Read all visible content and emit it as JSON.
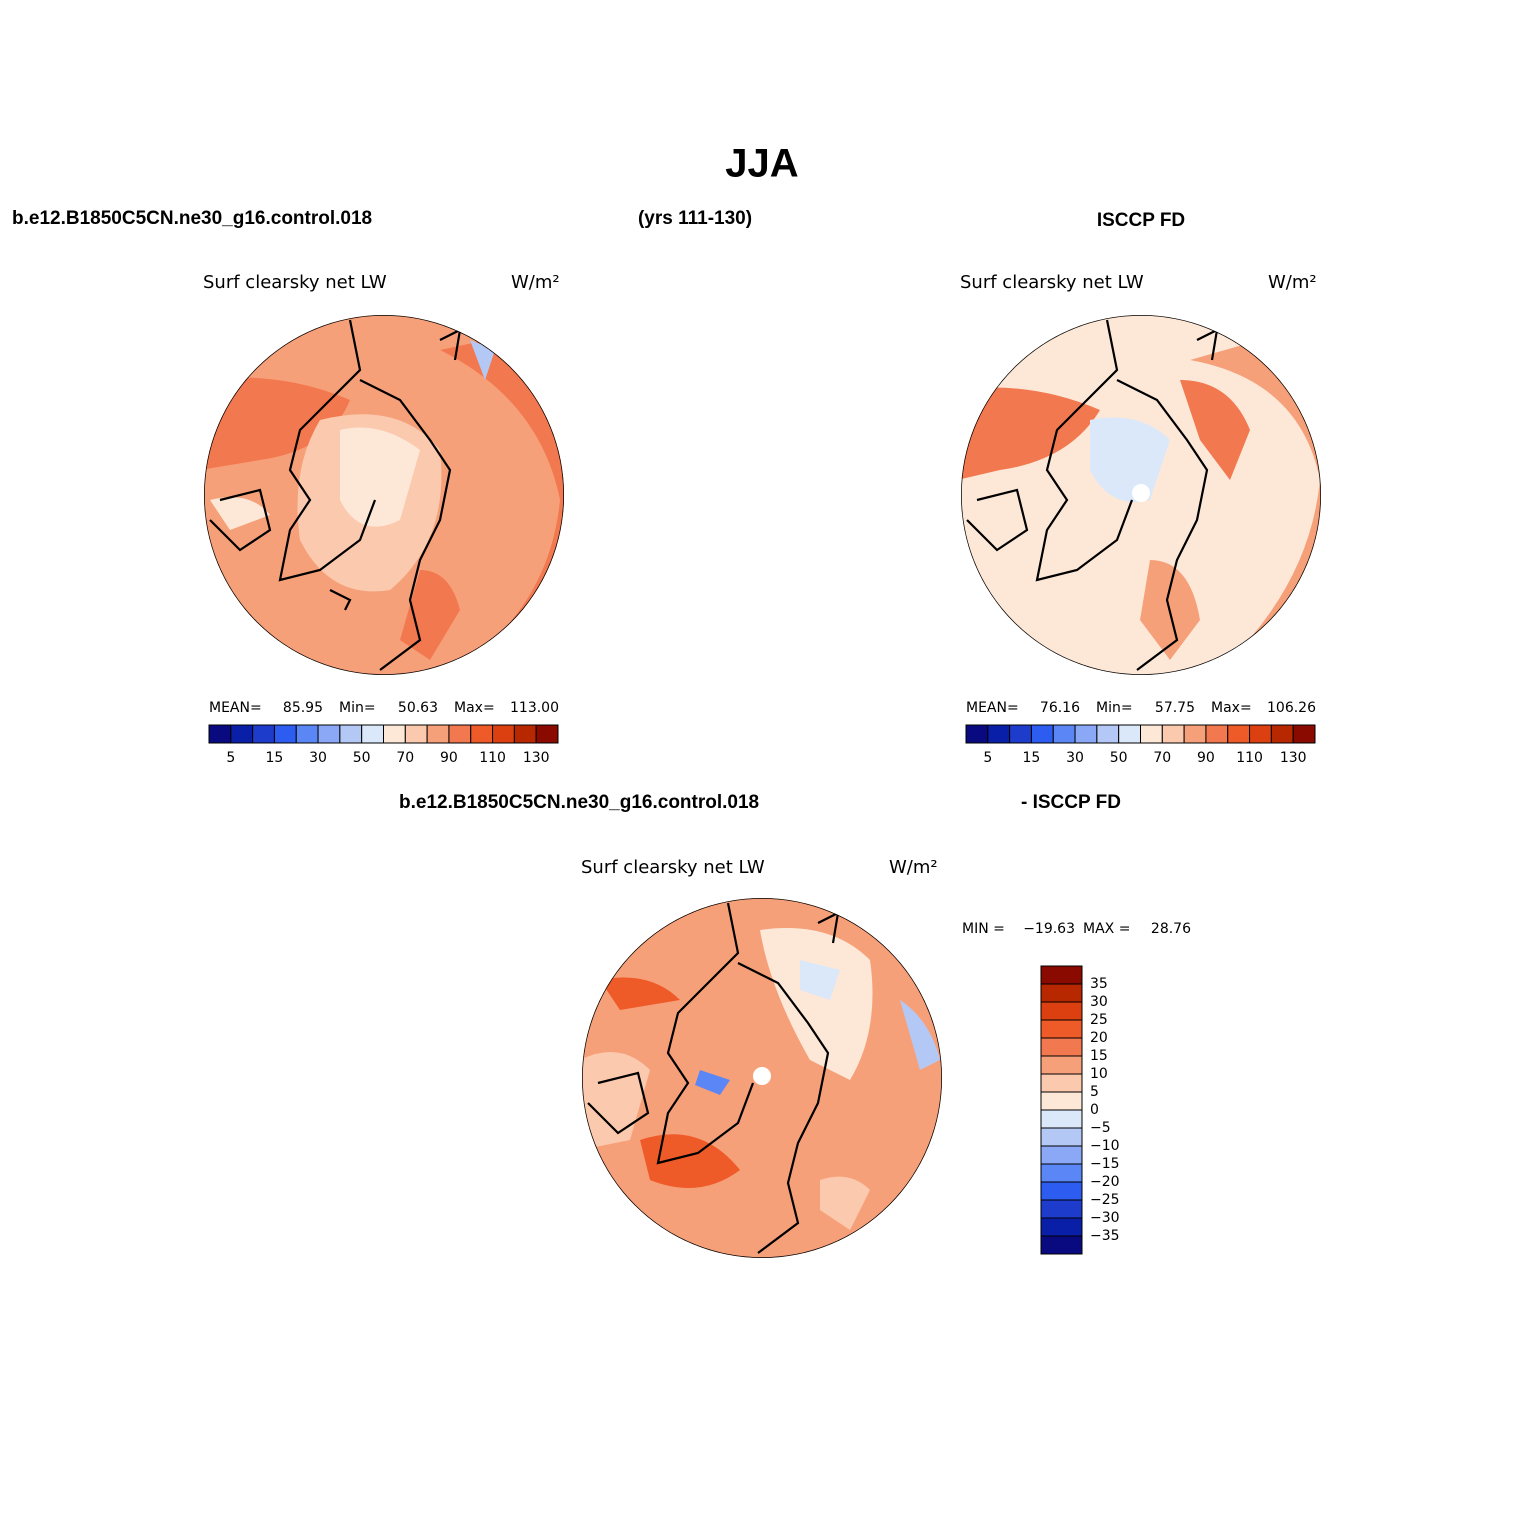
{
  "title": "JJA",
  "header": {
    "case": "b.e12.B1850C5CN.ne30_g16.control.018",
    "years": "(yrs 111-130)",
    "obs": "ISCCP FD"
  },
  "panels": [
    {
      "variable": "Surf clearsky net LW",
      "units": "W/m²",
      "stats": [
        {
          "label": "MEAN=",
          "value": "85.95"
        },
        {
          "label": "Min=",
          "value": "50.63"
        },
        {
          "label": "Max=",
          "value": "113.00"
        }
      ]
    },
    {
      "variable": "Surf clearsky net LW",
      "units": "W/m²",
      "stats": [
        {
          "label": "MEAN=",
          "value": "76.16"
        },
        {
          "label": "Min=",
          "value": "57.75"
        },
        {
          "label": "Max=",
          "value": "106.26"
        }
      ]
    }
  ],
  "colorbar": {
    "colors": [
      "#0a0a80",
      "#0a1fa8",
      "#1e3ccc",
      "#2d5cf0",
      "#5a87f5",
      "#8aa8f5",
      "#b4c8f5",
      "#dbe8fa",
      "#fde8d8",
      "#fbc9ae",
      "#f6a07a",
      "#f2784f",
      "#ee5a28",
      "#dd4010",
      "#b82800",
      "#8a0a00"
    ],
    "labels": [
      "5",
      "15",
      "30",
      "50",
      "70",
      "90",
      "110",
      "130"
    ]
  },
  "difference": {
    "case": "b.e12.B1850C5CN.ne30_g16.control.018",
    "obs": "- ISCCP FD",
    "variable": "Surf clearsky net LW",
    "units": "W/m²",
    "stats": [
      {
        "label": "MIN =",
        "value": "−19.63"
      },
      {
        "label": "MAX =",
        "value": "28.76"
      }
    ],
    "colorbar": {
      "colors": [
        "#8a0a00",
        "#b82800",
        "#dd4010",
        "#ee5a28",
        "#f2784f",
        "#f6a07a",
        "#fbc9ae",
        "#fde8d8",
        "#dbe8fa",
        "#b4c8f5",
        "#8aa8f5",
        "#5a87f5",
        "#2d5cf0",
        "#1e3ccc",
        "#0a1fa8",
        "#0a0a80"
      ],
      "labels": [
        "35",
        "30",
        "25",
        "20",
        "15",
        "10",
        "5",
        "0",
        "−5",
        "−10",
        "−15",
        "−20",
        "−25",
        "−30",
        "−35"
      ]
    }
  }
}
